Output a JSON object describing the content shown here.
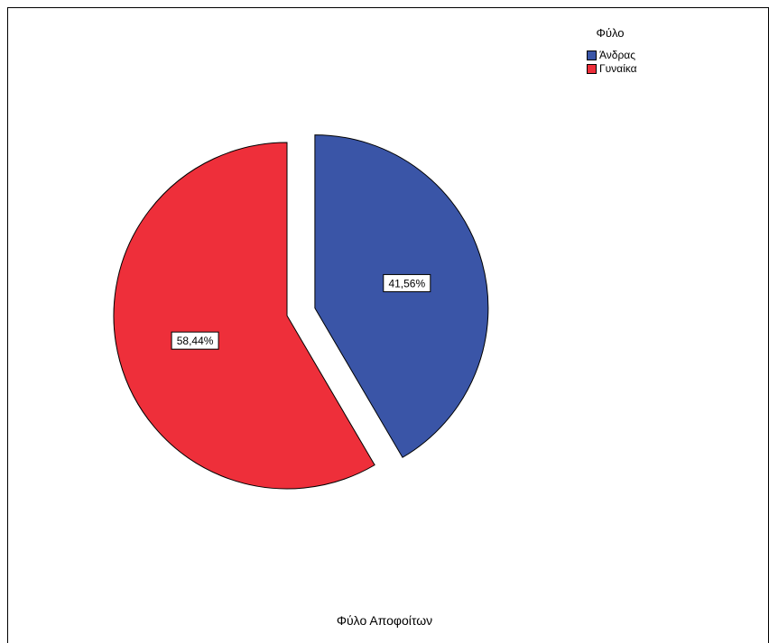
{
  "chart_data": {
    "type": "pie",
    "title": "",
    "caption": "Φύλο Αποφοίτων",
    "legend": {
      "title": "Φύλο",
      "placement": "top-right"
    },
    "slices": [
      {
        "label": "Άνδρας",
        "value": 41.56,
        "display": "41,56%",
        "color": "#3a55a7",
        "exploded": true
      },
      {
        "label": "Γυναίκα",
        "value": 58.44,
        "display": "58,44%",
        "color": "#ee2f3a",
        "exploded": false
      }
    ]
  }
}
